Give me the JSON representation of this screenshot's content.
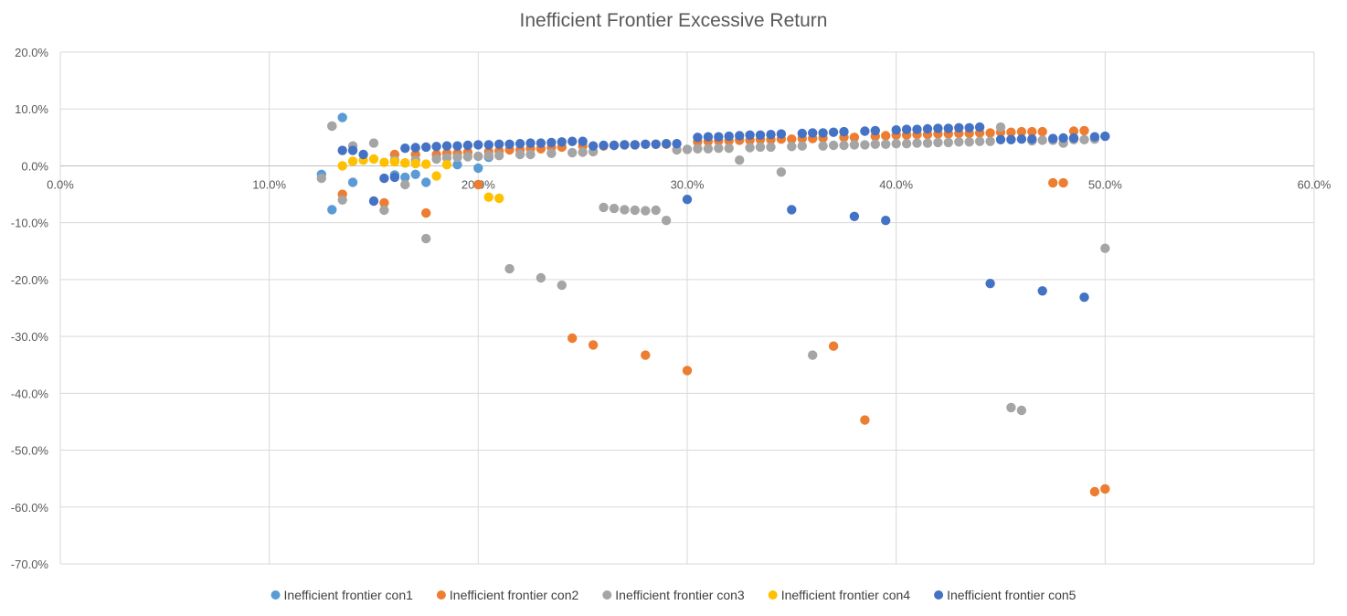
{
  "chart_data": {
    "type": "scatter",
    "title": "Inefficient Frontier Excessive Return",
    "xlabel": "",
    "ylabel": "",
    "xlim": [
      0,
      0.6
    ],
    "ylim": [
      -0.7,
      0.2
    ],
    "xticks": [
      0,
      0.1,
      0.2,
      0.3,
      0.4,
      0.5,
      0.6
    ],
    "xtick_labels": [
      "0.0%",
      "10.0%",
      "20.0%",
      "30.0%",
      "40.0%",
      "50.0%",
      "60.0%"
    ],
    "yticks": [
      0.2,
      0.1,
      0,
      -0.1,
      -0.2,
      -0.3,
      -0.4,
      -0.5,
      -0.6,
      -0.7
    ],
    "ytick_labels": [
      "20.0%",
      "10.0%",
      "0.0%",
      "-10.0%",
      "-20.0%",
      "-30.0%",
      "-40.0%",
      "-50.0%",
      "-60.0%",
      "-70.0%"
    ],
    "grid": true,
    "legend_position": "bottom",
    "series": [
      {
        "name": "Inefficient frontier con1",
        "color": "#5b9bd5",
        "points": [
          [
            0.125,
            -0.015
          ],
          [
            0.13,
            -0.077
          ],
          [
            0.135,
            0.085
          ],
          [
            0.14,
            -0.029
          ],
          [
            0.16,
            -0.016
          ],
          [
            0.165,
            -0.02
          ],
          [
            0.17,
            -0.015
          ],
          [
            0.175,
            -0.029
          ],
          [
            0.19,
            0.002
          ],
          [
            0.2,
            -0.004
          ],
          [
            0.205,
            0.015
          ]
        ]
      },
      {
        "name": "Inefficient frontier con2",
        "color": "#ed7d31",
        "points": [
          [
            0.13,
            0.07
          ],
          [
            0.135,
            -0.05
          ],
          [
            0.155,
            -0.065
          ],
          [
            0.16,
            0.02
          ],
          [
            0.165,
            0.005
          ],
          [
            0.17,
            0.02
          ],
          [
            0.175,
            -0.083
          ],
          [
            0.18,
            0.02
          ],
          [
            0.185,
            0.022
          ],
          [
            0.19,
            0.022
          ],
          [
            0.195,
            0.024
          ],
          [
            0.2,
            -0.033
          ],
          [
            0.205,
            0.025
          ],
          [
            0.21,
            0.026
          ],
          [
            0.215,
            0.028
          ],
          [
            0.22,
            0.028
          ],
          [
            0.225,
            0.03
          ],
          [
            0.23,
            0.03
          ],
          [
            0.235,
            0.032
          ],
          [
            0.24,
            0.033
          ],
          [
            0.245,
            -0.303
          ],
          [
            0.25,
            0.035
          ],
          [
            0.255,
            -0.315
          ],
          [
            0.26,
            0.035
          ],
          [
            0.265,
            0.036
          ],
          [
            0.27,
            0.037
          ],
          [
            0.275,
            0.037
          ],
          [
            0.28,
            -0.333
          ],
          [
            0.285,
            0.038
          ],
          [
            0.29,
            0.038
          ],
          [
            0.3,
            -0.36
          ],
          [
            0.305,
            0.042
          ],
          [
            0.31,
            0.043
          ],
          [
            0.315,
            0.044
          ],
          [
            0.32,
            0.044
          ],
          [
            0.325,
            0.045
          ],
          [
            0.33,
            0.045
          ],
          [
            0.335,
            0.046
          ],
          [
            0.34,
            0.046
          ],
          [
            0.345,
            0.047
          ],
          [
            0.35,
            0.047
          ],
          [
            0.355,
            0.048
          ],
          [
            0.36,
            0.048
          ],
          [
            0.365,
            0.049
          ],
          [
            0.37,
            -0.317
          ],
          [
            0.375,
            0.05
          ],
          [
            0.38,
            0.05
          ],
          [
            0.385,
            -0.447
          ],
          [
            0.39,
            0.052
          ],
          [
            0.395,
            0.053
          ],
          [
            0.4,
            0.054
          ],
          [
            0.405,
            0.054
          ],
          [
            0.41,
            0.055
          ],
          [
            0.415,
            0.055
          ],
          [
            0.42,
            0.056
          ],
          [
            0.425,
            0.056
          ],
          [
            0.43,
            0.057
          ],
          [
            0.435,
            0.057
          ],
          [
            0.44,
            0.058
          ],
          [
            0.445,
            0.058
          ],
          [
            0.45,
            0.059
          ],
          [
            0.455,
            0.059
          ],
          [
            0.46,
            0.06
          ],
          [
            0.465,
            0.06
          ],
          [
            0.47,
            0.06
          ],
          [
            0.475,
            -0.03
          ],
          [
            0.48,
            -0.03
          ],
          [
            0.485,
            0.061
          ],
          [
            0.49,
            0.062
          ],
          [
            0.495,
            -0.573
          ],
          [
            0.5,
            -0.568
          ]
        ]
      },
      {
        "name": "Inefficient frontier con3",
        "color": "#a5a5a5",
        "points": [
          [
            0.125,
            -0.022
          ],
          [
            0.13,
            0.07
          ],
          [
            0.135,
            -0.06
          ],
          [
            0.14,
            0.035
          ],
          [
            0.15,
            0.04
          ],
          [
            0.155,
            -0.078
          ],
          [
            0.16,
            0.01
          ],
          [
            0.165,
            -0.033
          ],
          [
            0.17,
            0.01
          ],
          [
            0.175,
            -0.128
          ],
          [
            0.18,
            0.012
          ],
          [
            0.185,
            0.014
          ],
          [
            0.19,
            0.015
          ],
          [
            0.195,
            0.016
          ],
          [
            0.2,
            0.017
          ],
          [
            0.205,
            0.018
          ],
          [
            0.21,
            0.018
          ],
          [
            0.215,
            -0.181
          ],
          [
            0.22,
            0.02
          ],
          [
            0.225,
            0.02
          ],
          [
            0.23,
            -0.197
          ],
          [
            0.235,
            0.022
          ],
          [
            0.24,
            -0.21
          ],
          [
            0.245,
            0.023
          ],
          [
            0.25,
            0.024
          ],
          [
            0.255,
            0.025
          ],
          [
            0.26,
            -0.073
          ],
          [
            0.265,
            -0.075
          ],
          [
            0.27,
            -0.077
          ],
          [
            0.275,
            -0.078
          ],
          [
            0.28,
            -0.079
          ],
          [
            0.285,
            -0.078
          ],
          [
            0.29,
            -0.096
          ],
          [
            0.295,
            0.028
          ],
          [
            0.3,
            0.029
          ],
          [
            0.305,
            0.03
          ],
          [
            0.31,
            0.03
          ],
          [
            0.315,
            0.031
          ],
          [
            0.32,
            0.031
          ],
          [
            0.325,
            0.01
          ],
          [
            0.33,
            0.032
          ],
          [
            0.335,
            0.033
          ],
          [
            0.34,
            0.033
          ],
          [
            0.345,
            -0.011
          ],
          [
            0.35,
            0.034
          ],
          [
            0.355,
            0.035
          ],
          [
            0.36,
            -0.333
          ],
          [
            0.365,
            0.035
          ],
          [
            0.37,
            0.036
          ],
          [
            0.375,
            0.036
          ],
          [
            0.38,
            0.037
          ],
          [
            0.385,
            0.037
          ],
          [
            0.39,
            0.038
          ],
          [
            0.395,
            0.038
          ],
          [
            0.4,
            0.039
          ],
          [
            0.405,
            0.039
          ],
          [
            0.41,
            0.04
          ],
          [
            0.415,
            0.04
          ],
          [
            0.42,
            0.041
          ],
          [
            0.425,
            0.041
          ],
          [
            0.43,
            0.042
          ],
          [
            0.435,
            0.042
          ],
          [
            0.44,
            0.043
          ],
          [
            0.445,
            0.043
          ],
          [
            0.45,
            0.068
          ],
          [
            0.455,
            -0.425
          ],
          [
            0.46,
            -0.43
          ],
          [
            0.465,
            0.044
          ],
          [
            0.47,
            0.045
          ],
          [
            0.475,
            0.045
          ],
          [
            0.48,
            0.04
          ],
          [
            0.485,
            0.046
          ],
          [
            0.49,
            0.046
          ],
          [
            0.495,
            0.047
          ],
          [
            0.5,
            -0.145
          ]
        ]
      },
      {
        "name": "Inefficient frontier con4",
        "color": "#ffc000",
        "points": [
          [
            0.135,
            0.0
          ],
          [
            0.14,
            0.008
          ],
          [
            0.145,
            0.01
          ],
          [
            0.15,
            0.012
          ],
          [
            0.155,
            0.006
          ],
          [
            0.16,
            0.007
          ],
          [
            0.165,
            0.005
          ],
          [
            0.17,
            0.004
          ],
          [
            0.175,
            0.003
          ],
          [
            0.18,
            -0.018
          ],
          [
            0.185,
            0.002
          ],
          [
            0.205,
            -0.055
          ],
          [
            0.21,
            -0.057
          ]
        ]
      },
      {
        "name": "Inefficient frontier con5",
        "color": "#4472c4",
        "points": [
          [
            0.135,
            0.027
          ],
          [
            0.14,
            0.027
          ],
          [
            0.145,
            0.02
          ],
          [
            0.15,
            -0.062
          ],
          [
            0.155,
            -0.022
          ],
          [
            0.16,
            -0.02
          ],
          [
            0.165,
            0.031
          ],
          [
            0.17,
            0.032
          ],
          [
            0.175,
            0.033
          ],
          [
            0.18,
            0.034
          ],
          [
            0.185,
            0.035
          ],
          [
            0.19,
            0.035
          ],
          [
            0.195,
            0.036
          ],
          [
            0.2,
            0.037
          ],
          [
            0.205,
            0.037
          ],
          [
            0.21,
            0.038
          ],
          [
            0.215,
            0.038
          ],
          [
            0.22,
            0.039
          ],
          [
            0.225,
            0.04
          ],
          [
            0.23,
            0.04
          ],
          [
            0.235,
            0.041
          ],
          [
            0.24,
            0.042
          ],
          [
            0.245,
            0.043
          ],
          [
            0.25,
            0.043
          ],
          [
            0.255,
            0.035
          ],
          [
            0.26,
            0.036
          ],
          [
            0.265,
            0.036
          ],
          [
            0.27,
            0.037
          ],
          [
            0.275,
            0.037
          ],
          [
            0.28,
            0.038
          ],
          [
            0.285,
            0.038
          ],
          [
            0.29,
            0.039
          ],
          [
            0.295,
            0.039
          ],
          [
            0.3,
            -0.059
          ],
          [
            0.305,
            0.05
          ],
          [
            0.31,
            0.051
          ],
          [
            0.315,
            0.051
          ],
          [
            0.32,
            0.052
          ],
          [
            0.325,
            0.053
          ],
          [
            0.33,
            0.054
          ],
          [
            0.335,
            0.054
          ],
          [
            0.34,
            0.055
          ],
          [
            0.345,
            0.056
          ],
          [
            0.35,
            -0.077
          ],
          [
            0.355,
            0.057
          ],
          [
            0.36,
            0.058
          ],
          [
            0.365,
            0.058
          ],
          [
            0.37,
            0.059
          ],
          [
            0.375,
            0.06
          ],
          [
            0.38,
            -0.089
          ],
          [
            0.385,
            0.061
          ],
          [
            0.39,
            0.062
          ],
          [
            0.395,
            -0.096
          ],
          [
            0.4,
            0.063
          ],
          [
            0.405,
            0.064
          ],
          [
            0.41,
            0.064
          ],
          [
            0.415,
            0.065
          ],
          [
            0.42,
            0.066
          ],
          [
            0.425,
            0.066
          ],
          [
            0.43,
            0.067
          ],
          [
            0.435,
            0.067
          ],
          [
            0.44,
            0.068
          ],
          [
            0.445,
            -0.207
          ],
          [
            0.45,
            0.046
          ],
          [
            0.455,
            0.046
          ],
          [
            0.46,
            0.047
          ],
          [
            0.465,
            0.047
          ],
          [
            0.47,
            -0.22
          ],
          [
            0.475,
            0.048
          ],
          [
            0.48,
            0.049
          ],
          [
            0.485,
            0.049
          ],
          [
            0.49,
            -0.231
          ],
          [
            0.495,
            0.051
          ],
          [
            0.5,
            0.052
          ]
        ]
      }
    ]
  }
}
